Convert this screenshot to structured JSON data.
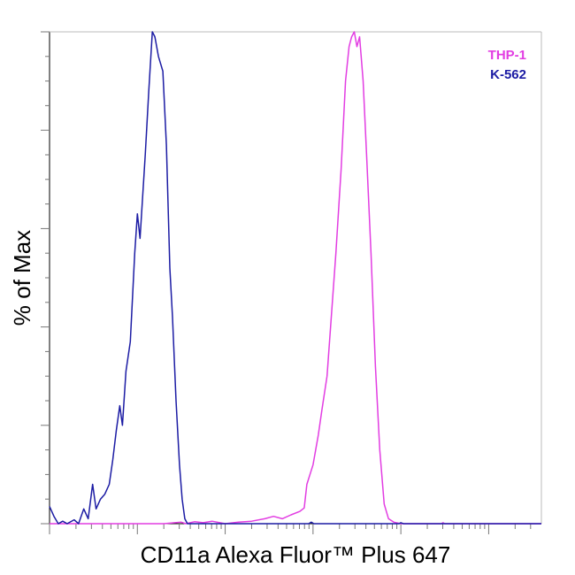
{
  "chart_data": {
    "type": "line",
    "title": "",
    "xlabel": "CD11a Alexa Fluor™ Plus 647",
    "ylabel": "% of Max",
    "xscale": "log",
    "x_range_log10": [
      1.0,
      6.6
    ],
    "ylim": [
      0,
      100
    ],
    "grid": false,
    "legend_position": "top-right",
    "series": [
      {
        "name": "THP-1",
        "color": "#e23de2",
        "points": [
          [
            1.0,
            0.0
          ],
          [
            2.3,
            0.0
          ],
          [
            2.5,
            0.3
          ],
          [
            2.55,
            0.0
          ],
          [
            2.65,
            0.4
          ],
          [
            2.75,
            0.2
          ],
          [
            2.85,
            0.5
          ],
          [
            3.0,
            0.0
          ],
          [
            3.15,
            0.3
          ],
          [
            3.3,
            0.5
          ],
          [
            3.45,
            1.0
          ],
          [
            3.55,
            1.5
          ],
          [
            3.65,
            1.0
          ],
          [
            3.75,
            1.8
          ],
          [
            3.85,
            2.5
          ],
          [
            3.9,
            3.2
          ],
          [
            3.93,
            8.0
          ],
          [
            4.0,
            12.0
          ],
          [
            4.06,
            18.0
          ],
          [
            4.1,
            23.0
          ],
          [
            4.16,
            30.0
          ],
          [
            4.2,
            40.0
          ],
          [
            4.26,
            55.0
          ],
          [
            4.32,
            72.0
          ],
          [
            4.37,
            90.0
          ],
          [
            4.41,
            97.0
          ],
          [
            4.44,
            99.0
          ],
          [
            4.47,
            100.0
          ],
          [
            4.5,
            97.0
          ],
          [
            4.53,
            99.0
          ],
          [
            4.57,
            90.0
          ],
          [
            4.61,
            75.0
          ],
          [
            4.66,
            55.0
          ],
          [
            4.71,
            32.0
          ],
          [
            4.76,
            15.0
          ],
          [
            4.81,
            4.0
          ],
          [
            4.86,
            1.0
          ],
          [
            4.92,
            0.3
          ],
          [
            5.0,
            0.0
          ],
          [
            5.46,
            0.0
          ],
          [
            5.48,
            0.2
          ],
          [
            5.5,
            0.0
          ],
          [
            6.6,
            0.0
          ]
        ]
      },
      {
        "name": "K-562",
        "color": "#1c1ca4",
        "points": [
          [
            1.0,
            3.5
          ],
          [
            1.05,
            1.5
          ],
          [
            1.1,
            0.0
          ],
          [
            1.15,
            0.5
          ],
          [
            1.2,
            0.0
          ],
          [
            1.28,
            0.8
          ],
          [
            1.33,
            0.0
          ],
          [
            1.39,
            3.0
          ],
          [
            1.44,
            1.0
          ],
          [
            1.49,
            8.0
          ],
          [
            1.53,
            3.0
          ],
          [
            1.58,
            5.0
          ],
          [
            1.63,
            6.0
          ],
          [
            1.68,
            8.0
          ],
          [
            1.72,
            13.0
          ],
          [
            1.76,
            19.0
          ],
          [
            1.8,
            24.0
          ],
          [
            1.83,
            20.0
          ],
          [
            1.87,
            31.0
          ],
          [
            1.92,
            37.0
          ],
          [
            1.97,
            55.0
          ],
          [
            2.0,
            63.0
          ],
          [
            2.03,
            58.0
          ],
          [
            2.09,
            75.0
          ],
          [
            2.13,
            88.0
          ],
          [
            2.17,
            100.0
          ],
          [
            2.2,
            99.0
          ],
          [
            2.24,
            95.0
          ],
          [
            2.29,
            92.0
          ],
          [
            2.33,
            77.0
          ],
          [
            2.37,
            52.0
          ],
          [
            2.4,
            42.0
          ],
          [
            2.44,
            25.0
          ],
          [
            2.48,
            12.0
          ],
          [
            2.51,
            5.0
          ],
          [
            2.54,
            1.0
          ],
          [
            2.57,
            0.0
          ],
          [
            3.95,
            0.0
          ],
          [
            3.98,
            0.3
          ],
          [
            4.01,
            0.0
          ],
          [
            4.98,
            0.0
          ],
          [
            5.0,
            0.2
          ],
          [
            5.03,
            0.0
          ],
          [
            6.6,
            0.0
          ]
        ]
      }
    ]
  }
}
